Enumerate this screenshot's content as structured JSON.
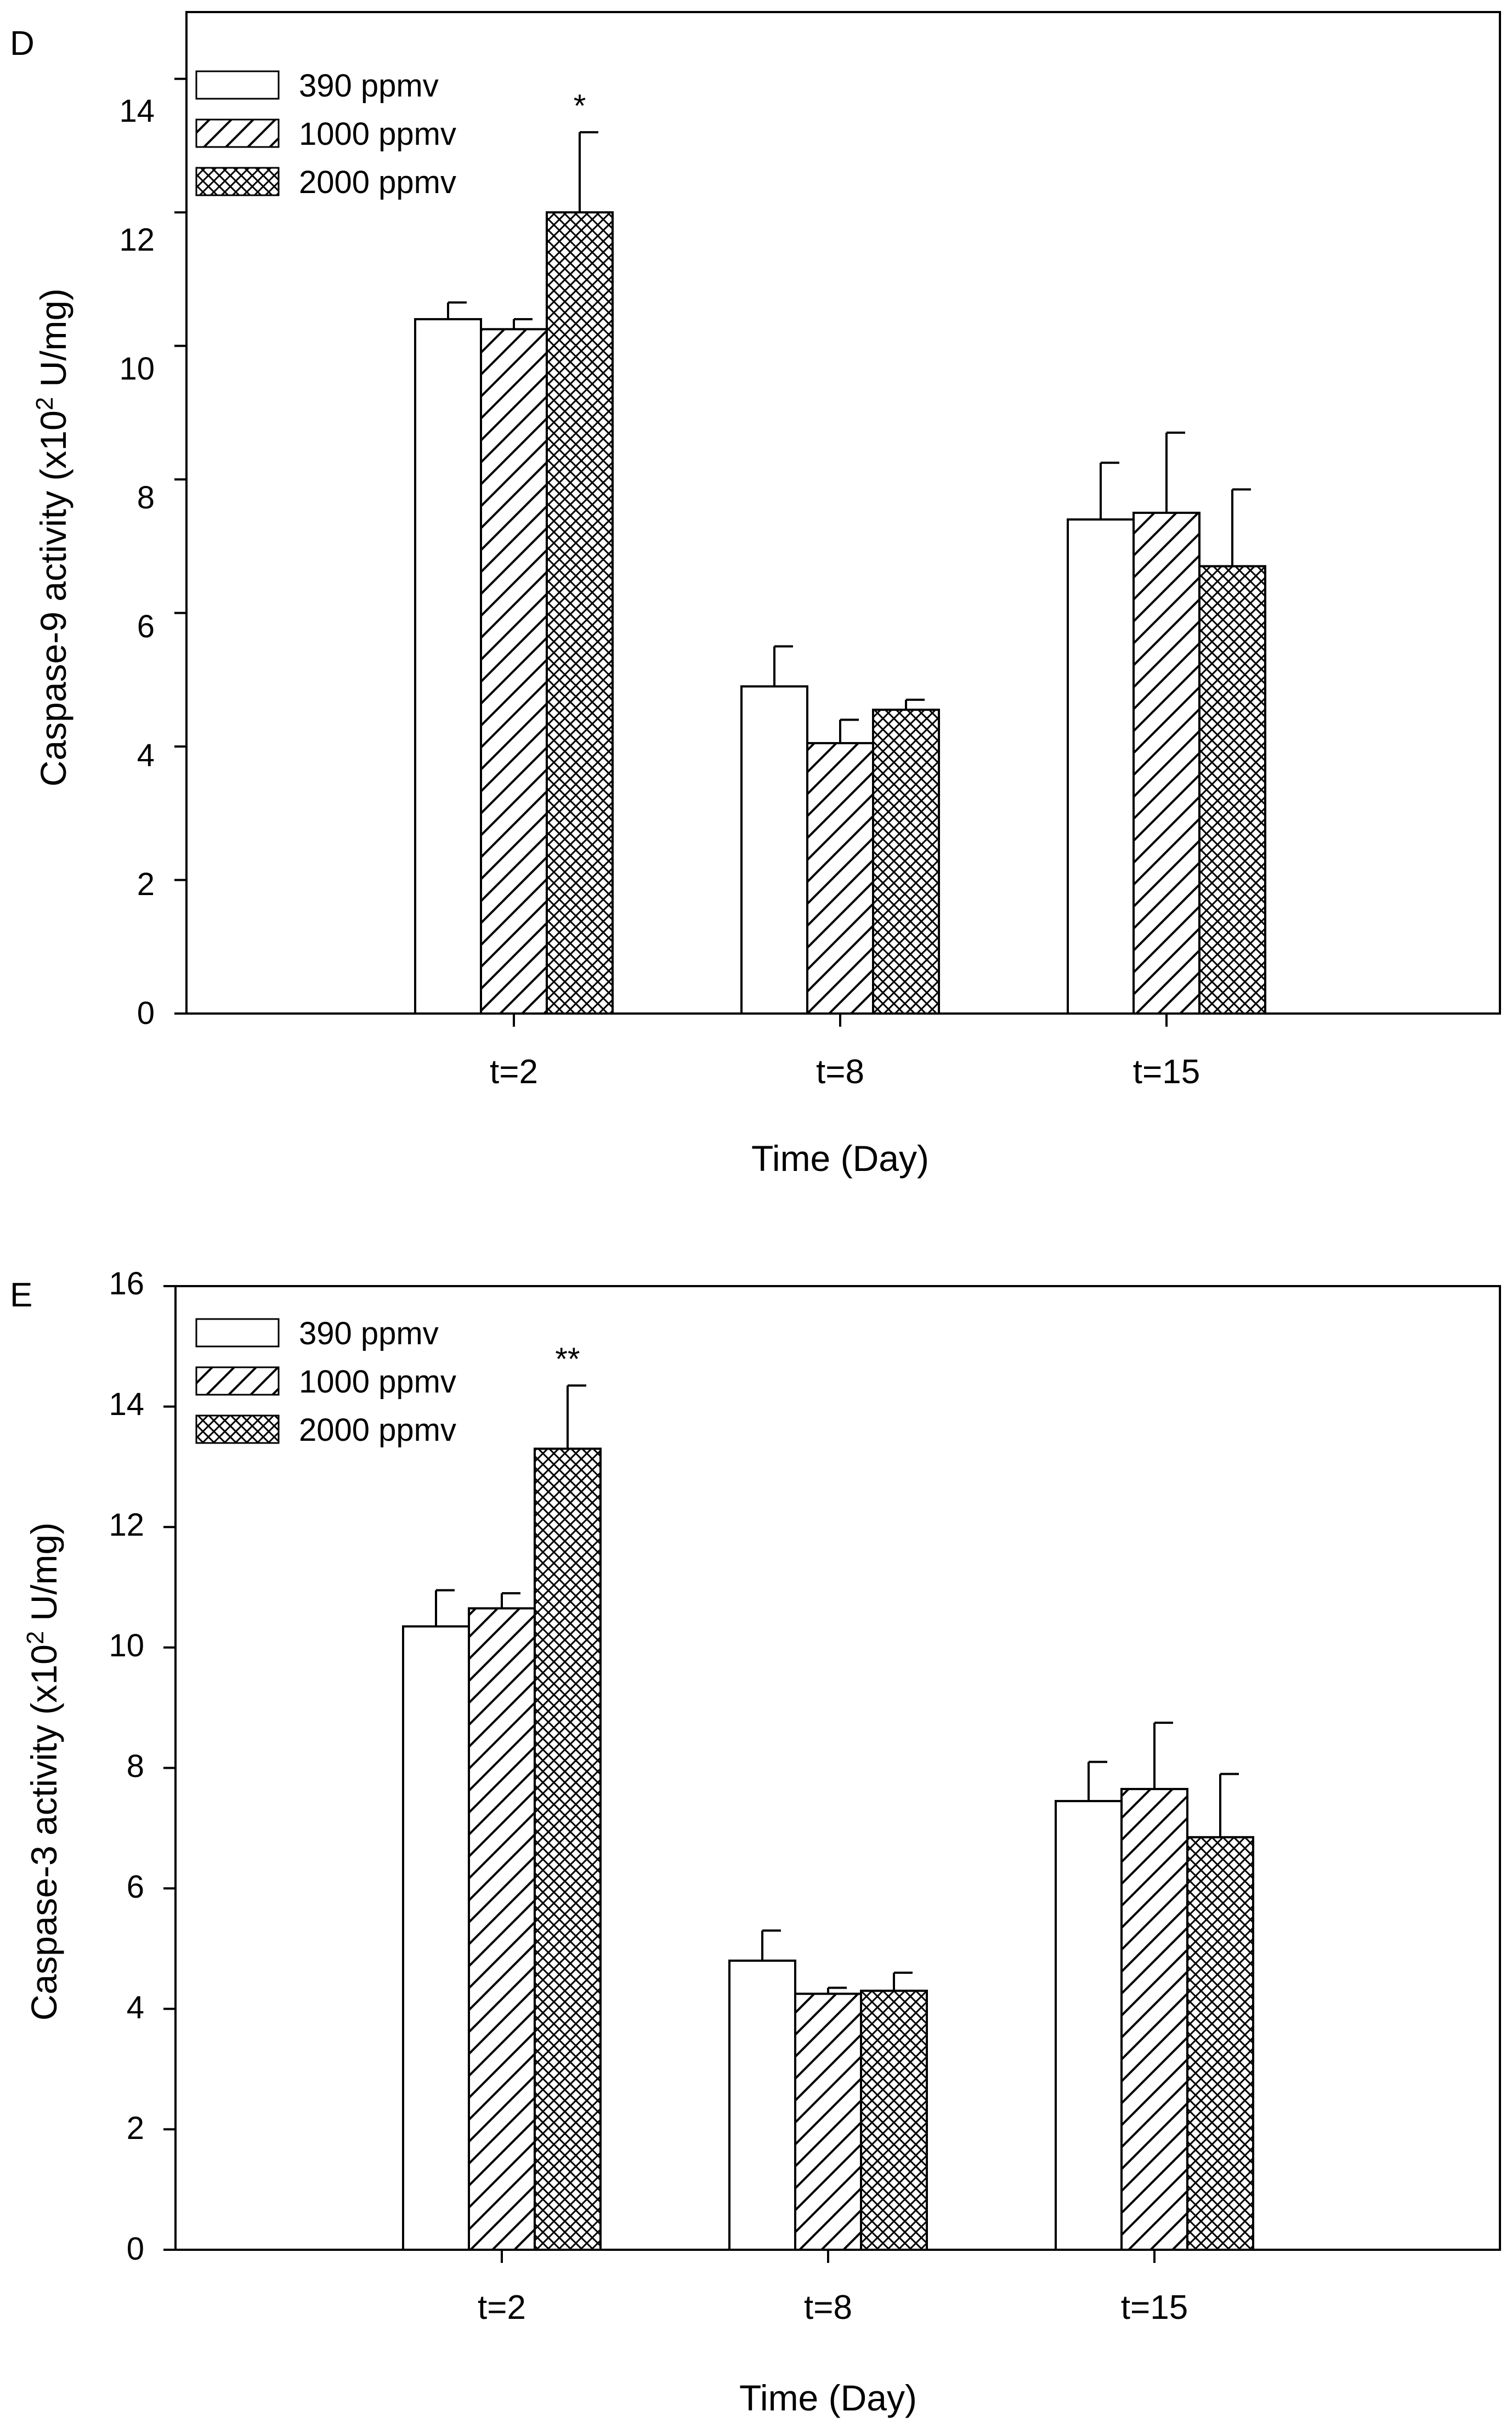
{
  "panels": [
    {
      "letter": "D",
      "ylabel": "Caspase-9 activity (x10",
      "ylabel_sup": "2",
      "ylabel_tail": " U/mg)",
      "yticks": [
        "0",
        "2",
        "4",
        "6",
        "8",
        "10",
        "12",
        "14"
      ],
      "legend": [
        "390 ppmv",
        "1000 ppmv",
        "2000 ppmv"
      ]
    },
    {
      "letter": "E",
      "ylabel": "Caspase-3 activity (x10",
      "ylabel_sup": "2",
      "ylabel_tail": " U/mg)",
      "yticks": [
        "0",
        "2",
        "4",
        "6",
        "8",
        "10",
        "12",
        "14",
        "16"
      ],
      "legend": [
        "390 ppmv",
        "1000 ppmv",
        "2000 ppmv"
      ]
    }
  ],
  "chart_data": [
    {
      "type": "bar",
      "categories": [
        "t=2",
        "t=8",
        "t=15"
      ],
      "xlabel": "Time (Day)",
      "ylabel": "Caspase-9 activity (x10^2 U/mg)",
      "ylim": [
        0,
        15
      ],
      "legend_position": "top-left",
      "series": [
        {
          "name": "390 ppmv",
          "pattern": "plain",
          "values": [
            10.4,
            4.9,
            7.4
          ],
          "errors": [
            0.25,
            0.6,
            0.85
          ]
        },
        {
          "name": "1000 ppmv",
          "pattern": "hatch",
          "values": [
            10.25,
            4.05,
            7.5
          ],
          "errors": [
            0.15,
            0.35,
            1.2
          ]
        },
        {
          "name": "2000 ppmv",
          "pattern": "crosshatch",
          "values": [
            12.0,
            4.55,
            6.7
          ],
          "errors": [
            1.2,
            0.15,
            1.15
          ]
        }
      ],
      "annotations": [
        {
          "category": 0,
          "series": 2,
          "text": "*"
        }
      ]
    },
    {
      "type": "bar",
      "categories": [
        "t=2",
        "t=8",
        "t=15"
      ],
      "xlabel": "Time (Day)",
      "ylabel": "Caspase-3 activity (x10^2 U/mg)",
      "ylim": [
        0,
        16
      ],
      "legend_position": "top-left",
      "series": [
        {
          "name": "390 ppmv",
          "pattern": "plain",
          "values": [
            10.35,
            4.8,
            7.45
          ],
          "errors": [
            0.6,
            0.5,
            0.65
          ]
        },
        {
          "name": "1000 ppmv",
          "pattern": "hatch",
          "values": [
            10.65,
            4.25,
            7.65
          ],
          "errors": [
            0.25,
            0.1,
            1.1
          ]
        },
        {
          "name": "2000 ppmv",
          "pattern": "crosshatch",
          "values": [
            13.3,
            4.3,
            6.85
          ],
          "errors": [
            1.05,
            0.3,
            1.05
          ]
        }
      ],
      "annotations": [
        {
          "category": 0,
          "series": 2,
          "text": "**"
        }
      ]
    }
  ]
}
